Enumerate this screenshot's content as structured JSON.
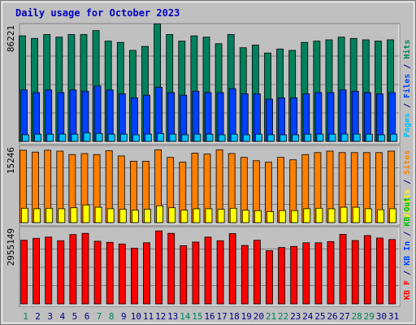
{
  "chart_data": {
    "type": "bar",
    "title": "Daily usage for October 2023",
    "categories": [
      "1",
      "2",
      "3",
      "4",
      "5",
      "6",
      "7",
      "8",
      "9",
      "10",
      "11",
      "12",
      "13",
      "14",
      "15",
      "16",
      "17",
      "18",
      "19",
      "20",
      "21",
      "22",
      "23",
      "24",
      "25",
      "26",
      "27",
      "28",
      "29",
      "30",
      "31"
    ],
    "weekend_days": [
      "1",
      "7",
      "8",
      "14",
      "15",
      "21",
      "22",
      "28",
      "29"
    ],
    "colors": {
      "background": "#c0c0c0",
      "border": "#808080",
      "title": "#0000c0",
      "gridline": "#808080",
      "weekday_label": "#000080",
      "weekend_label": "#00805c",
      "hits": "#00805c",
      "files": "#0040ff",
      "pages": "#00c0ff",
      "visits": "#ff8000",
      "sites": "#ffff00",
      "kbytes": "#ff0000"
    },
    "panels": [
      {
        "axis_label": "86221",
        "axis_max": 86221,
        "legend": [
          {
            "text": "Pages",
            "color": "#00c0ff"
          },
          {
            "text": " / ",
            "color": "#000080"
          },
          {
            "text": "Files",
            "color": "#0040ff"
          },
          {
            "text": " / ",
            "color": "#000080"
          },
          {
            "text": "Hits",
            "color": "#00805c"
          }
        ],
        "series": [
          {
            "name": "Hits",
            "values": [
              80000,
              78000,
              81000,
              79000,
              81000,
              81000,
              84000,
              76000,
              75000,
              69000,
              72000,
              89000,
              81000,
              76000,
              80000,
              79000,
              74000,
              81000,
              71000,
              73000,
              67000,
              70000,
              69000,
              75000,
              76000,
              77000,
              79000,
              78000,
              77000,
              76000,
              77000
            ]
          },
          {
            "name": "Files",
            "values": [
              39000,
              37000,
              39000,
              37000,
              39000,
              38000,
              42000,
              39000,
              36000,
              33000,
              35000,
              41000,
              37000,
              35000,
              38000,
              37000,
              37000,
              40000,
              36000,
              36000,
              32000,
              33000,
              33000,
              36000,
              37000,
              37000,
              39000,
              38000,
              37000,
              36000,
              37000
            ]
          },
          {
            "name": "Pages",
            "values": [
              5000,
              5500,
              5500,
              5500,
              5500,
              6500,
              6000,
              5500,
              5500,
              5000,
              5500,
              6000,
              5500,
              5000,
              5500,
              5500,
              5000,
              5500,
              5000,
              5500,
              5000,
              5000,
              5000,
              5500,
              5500,
              5500,
              5500,
              5500,
              5500,
              5000,
              5500
            ]
          }
        ]
      },
      {
        "axis_label": "15246",
        "axis_max": 15246,
        "legend": [
          {
            "text": "Visits",
            "color": "#ffff00"
          },
          {
            "text": " / ",
            "color": "#000080"
          },
          {
            "text": "Sites",
            "color": "#ff8000"
          }
        ],
        "series": [
          {
            "name": "Visits",
            "values": [
              15100,
              14700,
              15100,
              14900,
              14200,
              14400,
              14200,
              15000,
              13900,
              12800,
              12800,
              15200,
              13600,
              12600,
              14500,
              14300,
              15200,
              14400,
              13600,
              12900,
              12600,
              13600,
              13100,
              14200,
              14600,
              14900,
              14600,
              14600,
              14600,
              14600,
              14900
            ]
          },
          {
            "name": "Sites",
            "values": [
              3000,
              2900,
              3000,
              2900,
              3100,
              3700,
              3200,
              2900,
              2800,
              2600,
              2800,
              3500,
              3100,
              2600,
              2900,
              2900,
              2800,
              3000,
              2600,
              2500,
              2300,
              2500,
              2500,
              2900,
              3000,
              2900,
              3200,
              3200,
              2900,
              2700,
              2900
            ]
          }
        ]
      },
      {
        "axis_label": "2955149",
        "axis_max": 2955149,
        "legend": [
          {
            "text": "KB F",
            "color": "#ff0000"
          },
          {
            "text": " / ",
            "color": "#000080"
          },
          {
            "text": "KB In",
            "color": "#0040ff"
          },
          {
            "text": " / ",
            "color": "#000080"
          },
          {
            "text": "KB Out",
            "color": "#00c000"
          }
        ],
        "series": [
          {
            "name": "KB F",
            "values": [
              2570000,
              2650000,
              2700000,
              2550000,
              2800000,
              2850000,
              2530000,
              2490000,
              2420000,
              2250000,
              2470000,
              2950000,
              2850000,
              2350000,
              2500000,
              2700000,
              2550000,
              2840000,
              2360000,
              2570000,
              2150000,
              2280000,
              2320000,
              2470000,
              2470000,
              2520000,
              2810000,
              2560000,
              2760000,
              2660000,
              2600000
            ]
          }
        ]
      }
    ]
  }
}
